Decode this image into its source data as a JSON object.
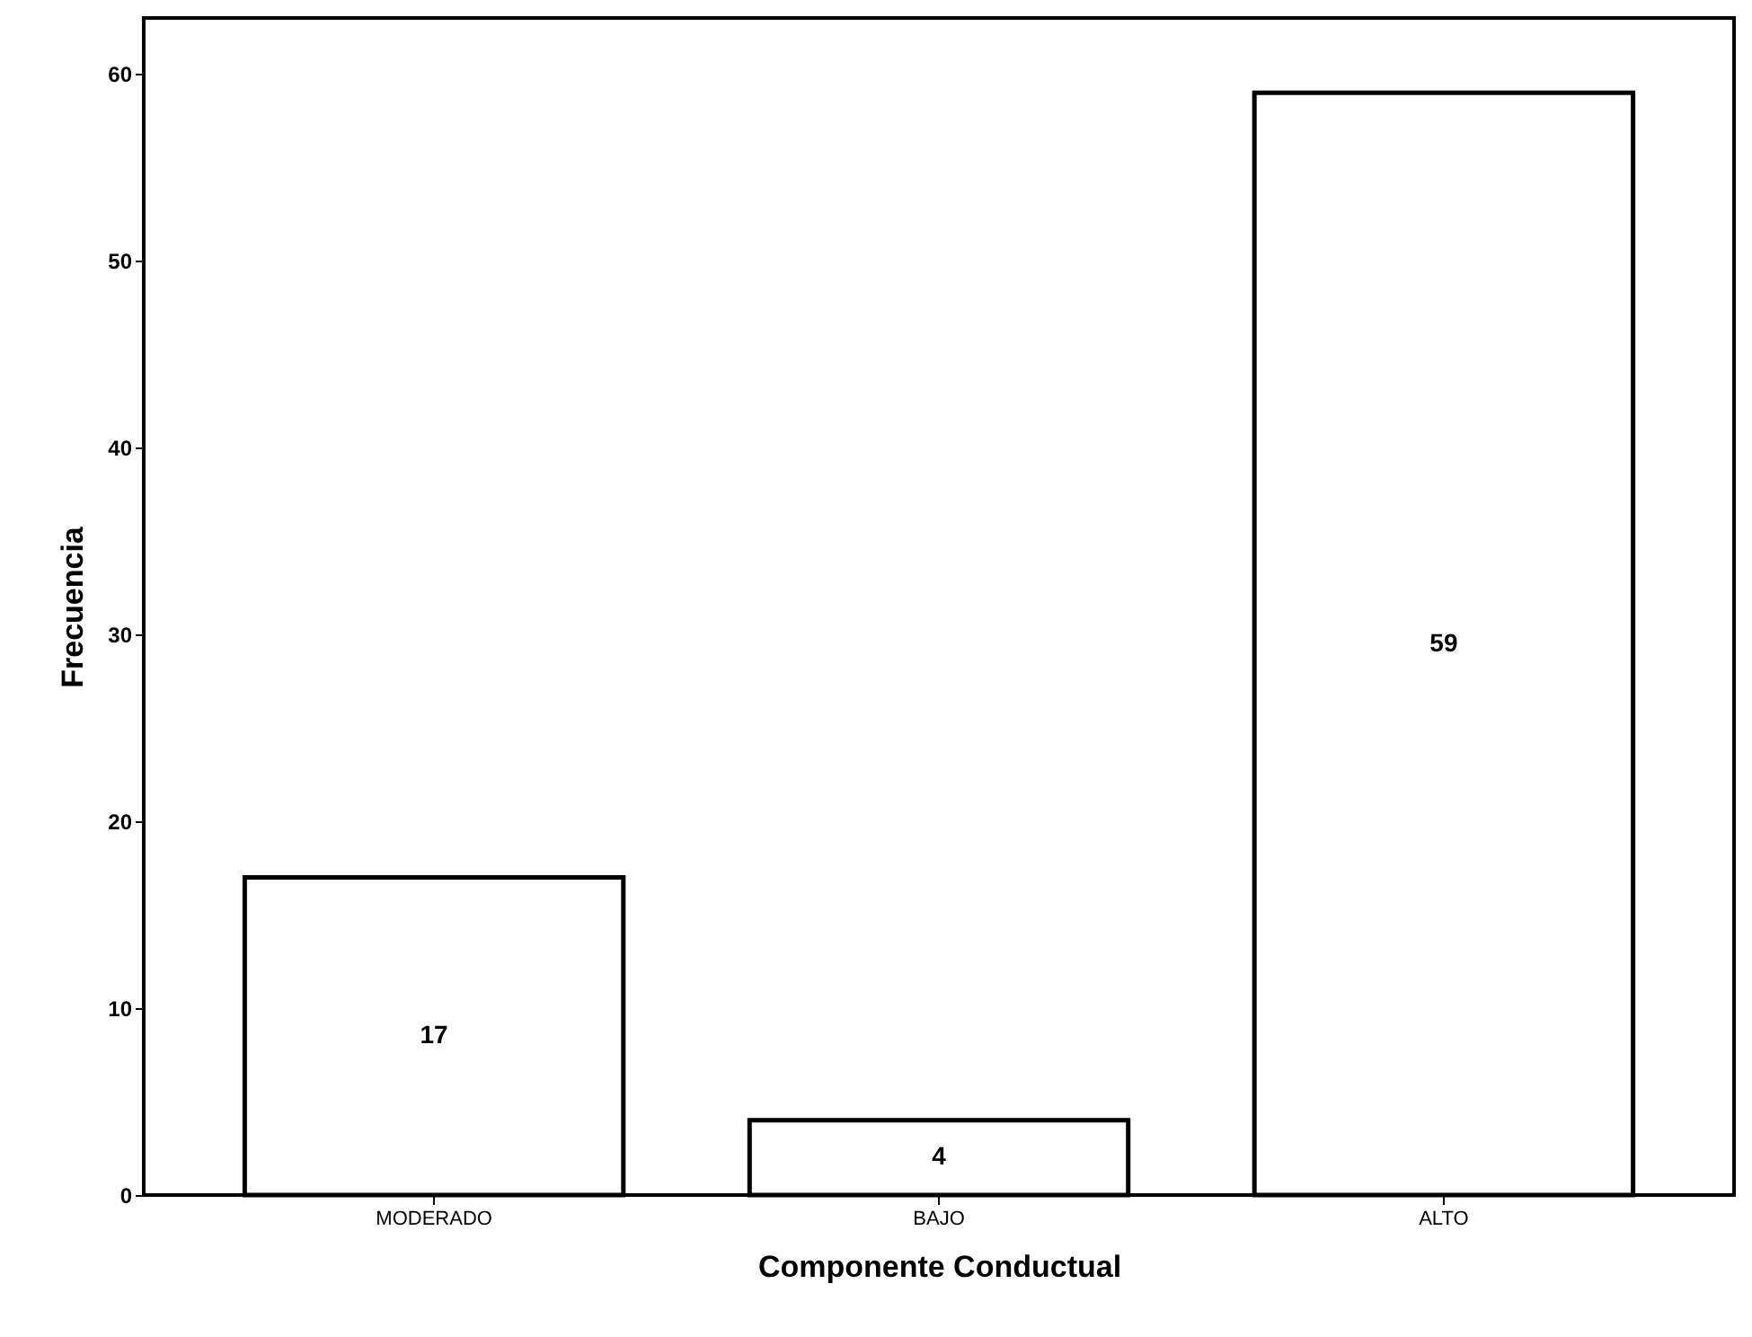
{
  "chart_data": {
    "type": "bar",
    "xlabel": "Componente Conductual",
    "ylabel": "Frecuencia",
    "categories": [
      "MODERADO",
      "BAJO",
      "ALTO"
    ],
    "values": [
      17,
      4,
      59
    ],
    "color": "#ffffff",
    "ylim": [
      0,
      63
    ],
    "yticks": [
      0,
      10,
      20,
      30,
      40,
      50,
      60
    ],
    "data_labels": true
  }
}
